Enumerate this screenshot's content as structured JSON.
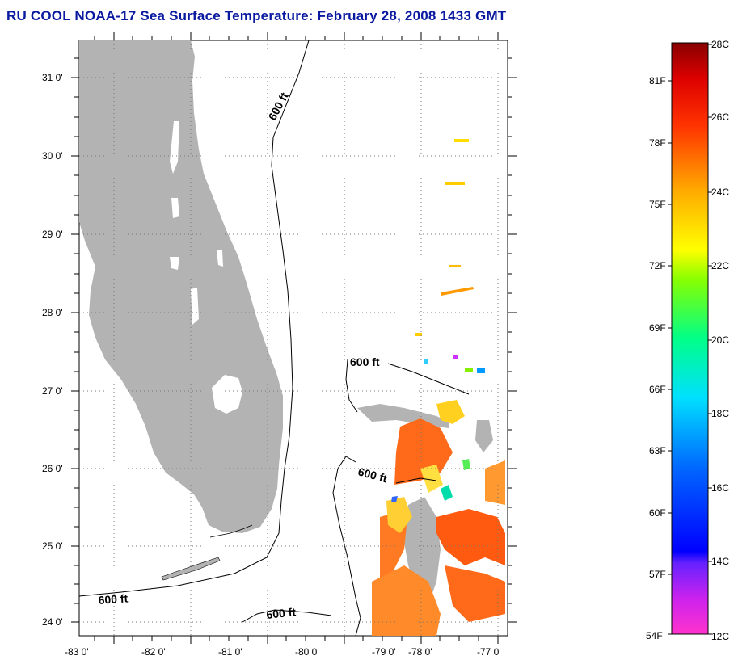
{
  "title": "RU COOL  NOAA-17  Sea Surface Temperature:  February 28, 2008 1433 GMT",
  "map": {
    "lat_labels": [
      "31 0'",
      "30 0'",
      "29 0'",
      "28 0'",
      "27 0'",
      "26 0'",
      "25 0'",
      "24 0'"
    ],
    "lon_labels": [
      "-83 0'",
      "-82 0'",
      "-81 0'",
      "-80 0'",
      "-79 0'",
      "-78 0'",
      "-77 0'"
    ],
    "contours": [
      "600 ft",
      "600 ft",
      "600 ft",
      "600 ft",
      "600 ft"
    ],
    "land_color": "#b3b3b3",
    "grid": "dotted"
  },
  "colorbar": {
    "fahrenheit": [
      "81F",
      "78F",
      "75F",
      "72F",
      "69F",
      "66F",
      "63F",
      "60F",
      "57F",
      "54F"
    ],
    "celsius": [
      "28C",
      "26C",
      "24C",
      "22C",
      "20C",
      "18C",
      "16C",
      "14C",
      "12C"
    ]
  }
}
